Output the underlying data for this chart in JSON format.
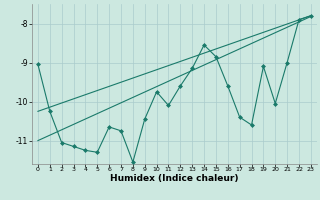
{
  "xlabel": "Humidex (Indice chaleur)",
  "background_color": "#cce8e0",
  "grid_color": "#aacccc",
  "line_color": "#1a7a6a",
  "xlim": [
    -0.5,
    23.5
  ],
  "ylim": [
    -11.6,
    -7.5
  ],
  "yticks": [
    -11,
    -10,
    -9,
    -8
  ],
  "xticks": [
    0,
    1,
    2,
    3,
    4,
    5,
    6,
    7,
    8,
    9,
    10,
    11,
    12,
    13,
    14,
    15,
    16,
    17,
    18,
    19,
    20,
    21,
    22,
    23
  ],
  "series1_x": [
    0,
    1,
    2,
    3,
    4,
    5,
    6,
    7,
    8,
    9,
    10,
    11,
    12,
    13,
    14,
    15,
    16,
    17,
    18,
    19,
    20,
    21,
    22,
    23
  ],
  "series1_y": [
    -9.05,
    -10.25,
    -11.05,
    -11.15,
    -11.25,
    -11.3,
    -10.65,
    -10.75,
    -11.55,
    -10.45,
    -9.75,
    -10.1,
    -9.6,
    -9.15,
    -8.55,
    -8.85,
    -9.6,
    -10.4,
    -10.6,
    -9.1,
    -10.05,
    -9.0,
    -7.9,
    -7.8
  ],
  "series2_x": [
    0,
    23
  ],
  "series2_y": [
    -10.25,
    -7.8
  ],
  "series3_x": [
    0,
    23
  ],
  "series3_y": [
    -11.0,
    -7.82
  ]
}
